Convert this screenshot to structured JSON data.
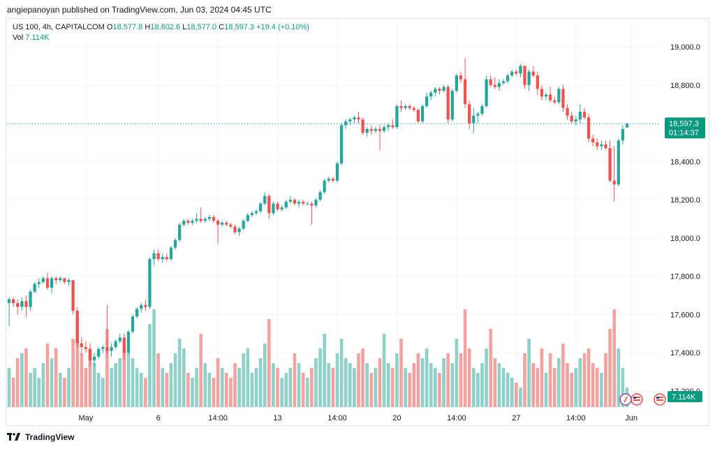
{
  "header": {
    "text": "angiepanoyan published on TradingView.com, Jun 03, 2024 04:45 UTC"
  },
  "legend": {
    "symbol": "US 100, 4h, CAPITALCOM",
    "open_label": "O",
    "open": "18,577.8",
    "high_label": "H",
    "high": "18,602.6",
    "low_label": "L",
    "low": "18,577.0",
    "close_label": "C",
    "close": "18,597.3",
    "change": "+19.4 (+0.10%)",
    "vol_label": "Vol",
    "vol_value": "7.114K"
  },
  "footer": {
    "brand": "TradingView"
  },
  "colors": {
    "up": "#26a69a",
    "down": "#ef5350",
    "up_text": "#089981",
    "vol_up": "#8fd0c9",
    "vol_down": "#f2a3a0",
    "grid": "#f0f3fa",
    "price_line": "#089981"
  },
  "chart_data": {
    "type": "candlestick",
    "timeframe": "4h",
    "yticks": [
      17200,
      17400,
      17600,
      17800,
      18000,
      18200,
      18400,
      18600,
      18800,
      19000
    ],
    "ytick_labels": [
      "17,200.0",
      "17,400.0",
      "17,600.0",
      "17,800.0",
      "18,000.0",
      "18,200.0",
      "18,400.0",
      "18,600.0",
      "18,800.0",
      "19,000.0"
    ],
    "ylim": [
      17150,
      19120
    ],
    "x_labels": [
      {
        "label": "May",
        "index": 18
      },
      {
        "label": "6",
        "index": 35
      },
      {
        "label": "14:00",
        "index": 49
      },
      {
        "label": "13",
        "index": 63
      },
      {
        "label": "14:00",
        "index": 77
      },
      {
        "label": "20",
        "index": 91
      },
      {
        "label": "14:00",
        "index": 105
      },
      {
        "label": "27",
        "index": 119
      },
      {
        "label": "14:00",
        "index": 133
      },
      {
        "label": "Jun",
        "index": 146
      }
    ],
    "last_price": {
      "value": 18597.3,
      "label": "18,597.3",
      "countdown": "01:14:37"
    },
    "volume_label": "7.114K",
    "candles": [
      {
        "o": 17660,
        "h": 17690,
        "l": 17540,
        "c": 17680,
        "v": 40
      },
      {
        "o": 17680,
        "h": 17690,
        "l": 17640,
        "c": 17660,
        "v": 30
      },
      {
        "o": 17660,
        "h": 17680,
        "l": 17600,
        "c": 17640,
        "v": 50
      },
      {
        "o": 17640,
        "h": 17690,
        "l": 17620,
        "c": 17670,
        "v": 55
      },
      {
        "o": 17670,
        "h": 17700,
        "l": 17590,
        "c": 17640,
        "v": 60
      },
      {
        "o": 17640,
        "h": 17730,
        "l": 17620,
        "c": 17720,
        "v": 35
      },
      {
        "o": 17720,
        "h": 17770,
        "l": 17710,
        "c": 17760,
        "v": 40
      },
      {
        "o": 17760,
        "h": 17790,
        "l": 17740,
        "c": 17770,
        "v": 30
      },
      {
        "o": 17770,
        "h": 17800,
        "l": 17760,
        "c": 17790,
        "v": 45
      },
      {
        "o": 17790,
        "h": 17820,
        "l": 17730,
        "c": 17740,
        "v": 65
      },
      {
        "o": 17740,
        "h": 17800,
        "l": 17710,
        "c": 17790,
        "v": 50
      },
      {
        "o": 17790,
        "h": 17800,
        "l": 17760,
        "c": 17780,
        "v": 60
      },
      {
        "o": 17780,
        "h": 17800,
        "l": 17770,
        "c": 17790,
        "v": 35
      },
      {
        "o": 17790,
        "h": 17790,
        "l": 17760,
        "c": 17770,
        "v": 30
      },
      {
        "o": 17770,
        "h": 17790,
        "l": 17750,
        "c": 17780,
        "v": 40
      },
      {
        "o": 17780,
        "h": 17780,
        "l": 17600,
        "c": 17620,
        "v": 70
      },
      {
        "o": 17620,
        "h": 17640,
        "l": 17430,
        "c": 17450,
        "v": 90
      },
      {
        "o": 17450,
        "h": 17480,
        "l": 17390,
        "c": 17430,
        "v": 55
      },
      {
        "o": 17430,
        "h": 17460,
        "l": 17400,
        "c": 17420,
        "v": 40
      },
      {
        "o": 17420,
        "h": 17450,
        "l": 17330,
        "c": 17360,
        "v": 60
      },
      {
        "o": 17360,
        "h": 17400,
        "l": 17330,
        "c": 17380,
        "v": 45
      },
      {
        "o": 17380,
        "h": 17430,
        "l": 17370,
        "c": 17420,
        "v": 35
      },
      {
        "o": 17420,
        "h": 17440,
        "l": 17400,
        "c": 17430,
        "v": 30
      },
      {
        "o": 17430,
        "h": 17650,
        "l": 17390,
        "c": 17410,
        "v": 80
      },
      {
        "o": 17410,
        "h": 17450,
        "l": 17380,
        "c": 17430,
        "v": 40
      },
      {
        "o": 17430,
        "h": 17470,
        "l": 17420,
        "c": 17460,
        "v": 45
      },
      {
        "o": 17460,
        "h": 17500,
        "l": 17450,
        "c": 17480,
        "v": 50
      },
      {
        "o": 17480,
        "h": 17500,
        "l": 17360,
        "c": 17400,
        "v": 60
      },
      {
        "o": 17400,
        "h": 17520,
        "l": 17390,
        "c": 17510,
        "v": 55
      },
      {
        "o": 17510,
        "h": 17600,
        "l": 17500,
        "c": 17590,
        "v": 50
      },
      {
        "o": 17590,
        "h": 17640,
        "l": 17580,
        "c": 17630,
        "v": 40
      },
      {
        "o": 17630,
        "h": 17660,
        "l": 17610,
        "c": 17650,
        "v": 35
      },
      {
        "o": 17650,
        "h": 17680,
        "l": 17620,
        "c": 17640,
        "v": 30
      },
      {
        "o": 17640,
        "h": 17900,
        "l": 17630,
        "c": 17890,
        "v": 85
      },
      {
        "o": 17890,
        "h": 17940,
        "l": 17860,
        "c": 17920,
        "v": 100
      },
      {
        "o": 17920,
        "h": 17940,
        "l": 17880,
        "c": 17890,
        "v": 55
      },
      {
        "o": 17890,
        "h": 17920,
        "l": 17870,
        "c": 17900,
        "v": 40
      },
      {
        "o": 17900,
        "h": 17920,
        "l": 17880,
        "c": 17890,
        "v": 35
      },
      {
        "o": 17890,
        "h": 17960,
        "l": 17880,
        "c": 17950,
        "v": 45
      },
      {
        "o": 17950,
        "h": 18000,
        "l": 17940,
        "c": 17990,
        "v": 55
      },
      {
        "o": 17990,
        "h": 18080,
        "l": 17980,
        "c": 18070,
        "v": 70
      },
      {
        "o": 18070,
        "h": 18100,
        "l": 18060,
        "c": 18090,
        "v": 60
      },
      {
        "o": 18090,
        "h": 18100,
        "l": 18070,
        "c": 18080,
        "v": 35
      },
      {
        "o": 18080,
        "h": 18100,
        "l": 18070,
        "c": 18090,
        "v": 30
      },
      {
        "o": 18090,
        "h": 18130,
        "l": 18080,
        "c": 18100,
        "v": 40
      },
      {
        "o": 18100,
        "h": 18160,
        "l": 18080,
        "c": 18090,
        "v": 75
      },
      {
        "o": 18090,
        "h": 18110,
        "l": 18080,
        "c": 18100,
        "v": 45
      },
      {
        "o": 18100,
        "h": 18120,
        "l": 18090,
        "c": 18110,
        "v": 35
      },
      {
        "o": 18110,
        "h": 18120,
        "l": 18080,
        "c": 18090,
        "v": 30
      },
      {
        "o": 18090,
        "h": 18100,
        "l": 17970,
        "c": 18070,
        "v": 50
      },
      {
        "o": 18070,
        "h": 18090,
        "l": 18060,
        "c": 18080,
        "v": 40
      },
      {
        "o": 18080,
        "h": 18090,
        "l": 18060,
        "c": 18070,
        "v": 35
      },
      {
        "o": 18070,
        "h": 18080,
        "l": 18050,
        "c": 18060,
        "v": 30
      },
      {
        "o": 18060,
        "h": 18070,
        "l": 18020,
        "c": 18030,
        "v": 45
      },
      {
        "o": 18030,
        "h": 18060,
        "l": 18010,
        "c": 18050,
        "v": 40
      },
      {
        "o": 18050,
        "h": 18100,
        "l": 18040,
        "c": 18090,
        "v": 55
      },
      {
        "o": 18090,
        "h": 18130,
        "l": 18080,
        "c": 18120,
        "v": 60
      },
      {
        "o": 18120,
        "h": 18140,
        "l": 18110,
        "c": 18130,
        "v": 35
      },
      {
        "o": 18130,
        "h": 18150,
        "l": 18120,
        "c": 18140,
        "v": 40
      },
      {
        "o": 18140,
        "h": 18190,
        "l": 18130,
        "c": 18180,
        "v": 50
      },
      {
        "o": 18180,
        "h": 18240,
        "l": 18170,
        "c": 18220,
        "v": 65
      },
      {
        "o": 18220,
        "h": 18230,
        "l": 18100,
        "c": 18130,
        "v": 90
      },
      {
        "o": 18130,
        "h": 18190,
        "l": 18120,
        "c": 18180,
        "v": 45
      },
      {
        "o": 18180,
        "h": 18190,
        "l": 18140,
        "c": 18150,
        "v": 40
      },
      {
        "o": 18150,
        "h": 18170,
        "l": 18140,
        "c": 18160,
        "v": 30
      },
      {
        "o": 18160,
        "h": 18200,
        "l": 18150,
        "c": 18190,
        "v": 35
      },
      {
        "o": 18190,
        "h": 18220,
        "l": 18180,
        "c": 18200,
        "v": 40
      },
      {
        "o": 18200,
        "h": 18210,
        "l": 18170,
        "c": 18180,
        "v": 55
      },
      {
        "o": 18180,
        "h": 18200,
        "l": 18160,
        "c": 18190,
        "v": 45
      },
      {
        "o": 18190,
        "h": 18200,
        "l": 18170,
        "c": 18180,
        "v": 35
      },
      {
        "o": 18180,
        "h": 18190,
        "l": 18170,
        "c": 18180,
        "v": 30
      },
      {
        "o": 18180,
        "h": 18190,
        "l": 18070,
        "c": 18170,
        "v": 40
      },
      {
        "o": 18170,
        "h": 18210,
        "l": 18160,
        "c": 18200,
        "v": 50
      },
      {
        "o": 18200,
        "h": 18250,
        "l": 18190,
        "c": 18240,
        "v": 60
      },
      {
        "o": 18240,
        "h": 18310,
        "l": 18230,
        "c": 18300,
        "v": 75
      },
      {
        "o": 18300,
        "h": 18320,
        "l": 18290,
        "c": 18310,
        "v": 45
      },
      {
        "o": 18310,
        "h": 18320,
        "l": 18290,
        "c": 18300,
        "v": 40
      },
      {
        "o": 18300,
        "h": 18400,
        "l": 18290,
        "c": 18390,
        "v": 55
      },
      {
        "o": 18390,
        "h": 18600,
        "l": 18380,
        "c": 18590,
        "v": 70
      },
      {
        "o": 18590,
        "h": 18620,
        "l": 18570,
        "c": 18610,
        "v": 50
      },
      {
        "o": 18610,
        "h": 18630,
        "l": 18590,
        "c": 18620,
        "v": 45
      },
      {
        "o": 18620,
        "h": 18640,
        "l": 18600,
        "c": 18630,
        "v": 40
      },
      {
        "o": 18630,
        "h": 18660,
        "l": 18600,
        "c": 18620,
        "v": 55
      },
      {
        "o": 18620,
        "h": 18630,
        "l": 18540,
        "c": 18550,
        "v": 60
      },
      {
        "o": 18550,
        "h": 18580,
        "l": 18530,
        "c": 18570,
        "v": 45
      },
      {
        "o": 18570,
        "h": 18590,
        "l": 18540,
        "c": 18560,
        "v": 35
      },
      {
        "o": 18560,
        "h": 18580,
        "l": 18550,
        "c": 18570,
        "v": 40
      },
      {
        "o": 18570,
        "h": 18590,
        "l": 18460,
        "c": 18560,
        "v": 50
      },
      {
        "o": 18560,
        "h": 18590,
        "l": 18550,
        "c": 18580,
        "v": 75
      },
      {
        "o": 18580,
        "h": 18600,
        "l": 18560,
        "c": 18590,
        "v": 45
      },
      {
        "o": 18590,
        "h": 18620,
        "l": 18570,
        "c": 18580,
        "v": 40
      },
      {
        "o": 18580,
        "h": 18700,
        "l": 18570,
        "c": 18690,
        "v": 55
      },
      {
        "o": 18690,
        "h": 18720,
        "l": 18660,
        "c": 18680,
        "v": 70
      },
      {
        "o": 18680,
        "h": 18700,
        "l": 18670,
        "c": 18690,
        "v": 40
      },
      {
        "o": 18690,
        "h": 18700,
        "l": 18670,
        "c": 18680,
        "v": 35
      },
      {
        "o": 18680,
        "h": 18690,
        "l": 18660,
        "c": 18670,
        "v": 45
      },
      {
        "o": 18670,
        "h": 18680,
        "l": 18600,
        "c": 18610,
        "v": 55
      },
      {
        "o": 18610,
        "h": 18700,
        "l": 18600,
        "c": 18690,
        "v": 50
      },
      {
        "o": 18690,
        "h": 18760,
        "l": 18680,
        "c": 18740,
        "v": 60
      },
      {
        "o": 18740,
        "h": 18770,
        "l": 18720,
        "c": 18760,
        "v": 45
      },
      {
        "o": 18760,
        "h": 18790,
        "l": 18740,
        "c": 18780,
        "v": 40
      },
      {
        "o": 18780,
        "h": 18790,
        "l": 18750,
        "c": 18770,
        "v": 35
      },
      {
        "o": 18770,
        "h": 18800,
        "l": 18760,
        "c": 18790,
        "v": 50
      },
      {
        "o": 18790,
        "h": 18800,
        "l": 18600,
        "c": 18620,
        "v": 55
      },
      {
        "o": 18620,
        "h": 18780,
        "l": 18610,
        "c": 18770,
        "v": 45
      },
      {
        "o": 18770,
        "h": 18860,
        "l": 18760,
        "c": 18850,
        "v": 70
      },
      {
        "o": 18850,
        "h": 18870,
        "l": 18810,
        "c": 18830,
        "v": 55
      },
      {
        "o": 18830,
        "h": 18940,
        "l": 18680,
        "c": 18700,
        "v": 100
      },
      {
        "o": 18700,
        "h": 18720,
        "l": 18570,
        "c": 18600,
        "v": 60
      },
      {
        "o": 18600,
        "h": 18680,
        "l": 18550,
        "c": 18640,
        "v": 40
      },
      {
        "o": 18640,
        "h": 18660,
        "l": 18600,
        "c": 18650,
        "v": 35
      },
      {
        "o": 18650,
        "h": 18700,
        "l": 18640,
        "c": 18690,
        "v": 45
      },
      {
        "o": 18690,
        "h": 18850,
        "l": 18680,
        "c": 18830,
        "v": 60
      },
      {
        "o": 18830,
        "h": 18850,
        "l": 18790,
        "c": 18800,
        "v": 80
      },
      {
        "o": 18800,
        "h": 18840,
        "l": 18780,
        "c": 18790,
        "v": 50
      },
      {
        "o": 18790,
        "h": 18830,
        "l": 18770,
        "c": 18810,
        "v": 45
      },
      {
        "o": 18810,
        "h": 18830,
        "l": 18800,
        "c": 18820,
        "v": 40
      },
      {
        "o": 18820,
        "h": 18860,
        "l": 18810,
        "c": 18850,
        "v": 35
      },
      {
        "o": 18850,
        "h": 18880,
        "l": 18840,
        "c": 18870,
        "v": 30
      },
      {
        "o": 18870,
        "h": 18880,
        "l": 18850,
        "c": 18860,
        "v": 25
      },
      {
        "o": 18860,
        "h": 18910,
        "l": 18840,
        "c": 18900,
        "v": 20
      },
      {
        "o": 18900,
        "h": 18900,
        "l": 18780,
        "c": 18800,
        "v": 55
      },
      {
        "o": 18800,
        "h": 18880,
        "l": 18770,
        "c": 18870,
        "v": 70
      },
      {
        "o": 18870,
        "h": 18900,
        "l": 18840,
        "c": 18850,
        "v": 45
      },
      {
        "o": 18850,
        "h": 18870,
        "l": 18750,
        "c": 18780,
        "v": 40
      },
      {
        "o": 18780,
        "h": 18800,
        "l": 18720,
        "c": 18740,
        "v": 60
      },
      {
        "o": 18740,
        "h": 18760,
        "l": 18720,
        "c": 18750,
        "v": 35
      },
      {
        "o": 18750,
        "h": 18790,
        "l": 18710,
        "c": 18720,
        "v": 55
      },
      {
        "o": 18720,
        "h": 18740,
        "l": 18700,
        "c": 18710,
        "v": 40
      },
      {
        "o": 18710,
        "h": 18790,
        "l": 18700,
        "c": 18780,
        "v": 50
      },
      {
        "o": 18780,
        "h": 18800,
        "l": 18660,
        "c": 18680,
        "v": 65
      },
      {
        "o": 18680,
        "h": 18700,
        "l": 18620,
        "c": 18640,
        "v": 45
      },
      {
        "o": 18640,
        "h": 18660,
        "l": 18600,
        "c": 18610,
        "v": 35
      },
      {
        "o": 18610,
        "h": 18640,
        "l": 18590,
        "c": 18620,
        "v": 40
      },
      {
        "o": 18620,
        "h": 18700,
        "l": 18600,
        "c": 18660,
        "v": 50
      },
      {
        "o": 18660,
        "h": 18680,
        "l": 18620,
        "c": 18630,
        "v": 55
      },
      {
        "o": 18630,
        "h": 18650,
        "l": 18500,
        "c": 18520,
        "v": 60
      },
      {
        "o": 18520,
        "h": 18540,
        "l": 18480,
        "c": 18500,
        "v": 45
      },
      {
        "o": 18500,
        "h": 18520,
        "l": 18460,
        "c": 18480,
        "v": 40
      },
      {
        "o": 18480,
        "h": 18510,
        "l": 18460,
        "c": 18490,
        "v": 35
      },
      {
        "o": 18490,
        "h": 18510,
        "l": 18460,
        "c": 18470,
        "v": 55
      },
      {
        "o": 18470,
        "h": 18510,
        "l": 18290,
        "c": 18300,
        "v": 80
      },
      {
        "o": 18300,
        "h": 18480,
        "l": 18190,
        "c": 18280,
        "v": 100
      },
      {
        "o": 18280,
        "h": 18520,
        "l": 18270,
        "c": 18510,
        "v": 60
      },
      {
        "o": 18510,
        "h": 18590,
        "l": 18490,
        "c": 18570,
        "v": 40
      },
      {
        "o": 18578,
        "h": 18603,
        "l": 18577,
        "c": 18597,
        "v": 20
      }
    ]
  }
}
